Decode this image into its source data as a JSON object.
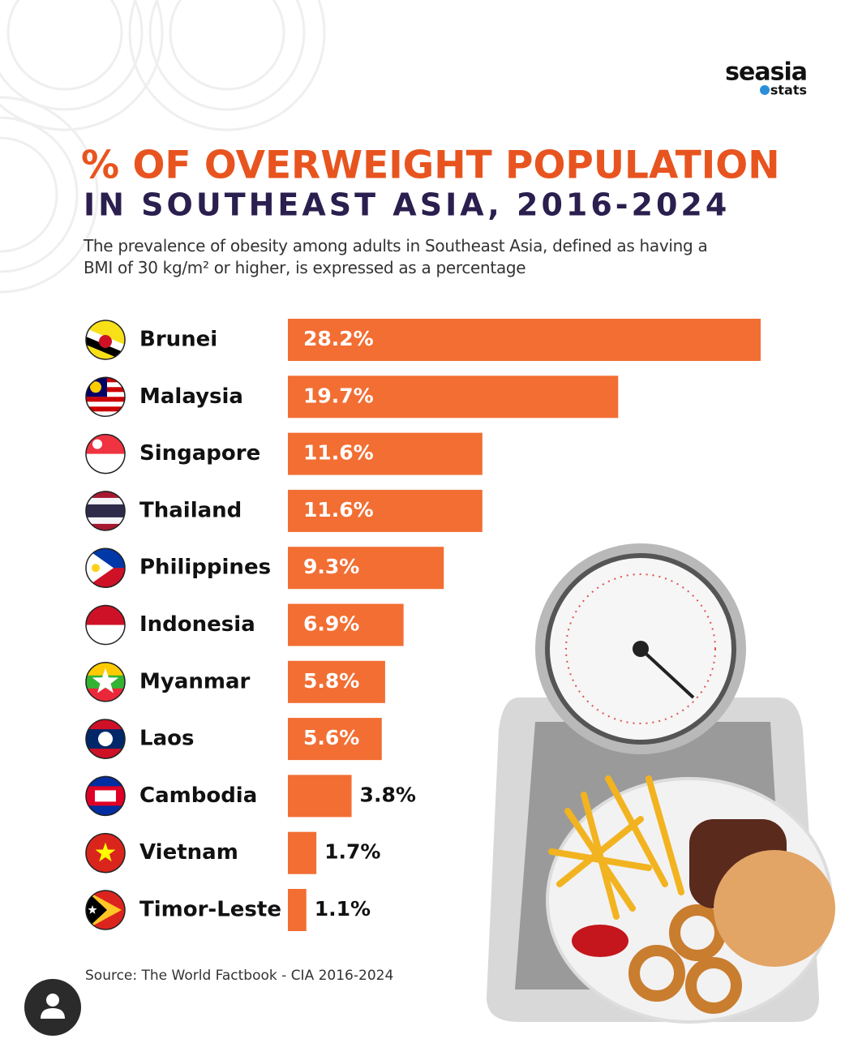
{
  "brand": {
    "name": "seasia",
    "tagline": "stats"
  },
  "chart_data": {
    "type": "bar",
    "orientation": "horizontal",
    "title": "% OF OVERWEIGHT POPULATION",
    "title_line_2": "IN SOUTHEAST ASIA, 2016-2024",
    "subtitle": "The prevalence of obesity among adults in Southeast Asia, defined as having a BMI of 30 kg/m² or higher, is expressed as a percentage",
    "categories": [
      "Brunei",
      "Malaysia",
      "Singapore",
      "Thailand",
      "Philippines",
      "Indonesia",
      "Myanmar",
      "Laos",
      "Cambodia",
      "Vietnam",
      "Timor-Leste"
    ],
    "values": [
      28.2,
      19.7,
      11.6,
      11.6,
      9.3,
      6.9,
      5.8,
      5.6,
      3.8,
      1.7,
      1.1
    ],
    "value_labels": [
      "28.2%",
      "19.7%",
      "11.6%",
      "11.6%",
      "9.3%",
      "6.9%",
      "5.8%",
      "5.6%",
      "3.8%",
      "1.7%",
      "1.1%"
    ],
    "color": "#f26e33",
    "source": "Source: The World Factbook - CIA 2016-2024"
  }
}
